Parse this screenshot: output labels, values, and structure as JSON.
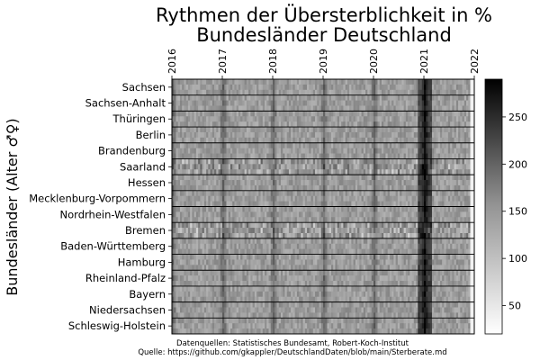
{
  "chart_data": {
    "type": "heatmap",
    "title_lines": [
      "Rythmen der Übersterblichkeit in %",
      "Bundesländer Deutschland"
    ],
    "ylabel": "Bundesländer (Alter ♂♀)",
    "x_ticks": [
      "2016",
      "2017",
      "2018",
      "2019",
      "2020",
      "2021",
      "2022"
    ],
    "rows": [
      "Sachsen",
      "Sachsen-Anhalt",
      "Thüringen",
      "Berlin",
      "Brandenburg",
      "Saarland",
      "Hessen",
      "Mecklenburg-Vorpommern",
      "Nordrhein-Westfalen",
      "Bremen",
      "Baden-Württemberg",
      "Hamburg",
      "Rheinland-Pfalz",
      "Bayern",
      "Niedersachsen",
      "Schleswig-Holstein"
    ],
    "colorbar": {
      "ticks": [
        50,
        100,
        150,
        200,
        250
      ],
      "range": [
        20,
        290
      ],
      "colormap": "Greys"
    },
    "notes": [
      "Datenquellen: Statistisches Bundesamt, Robert-Koch-Institut",
      "Quelle: https://github.com/gkappler/DeutschlandDaten/blob/main/Sterberate.md"
    ]
  }
}
